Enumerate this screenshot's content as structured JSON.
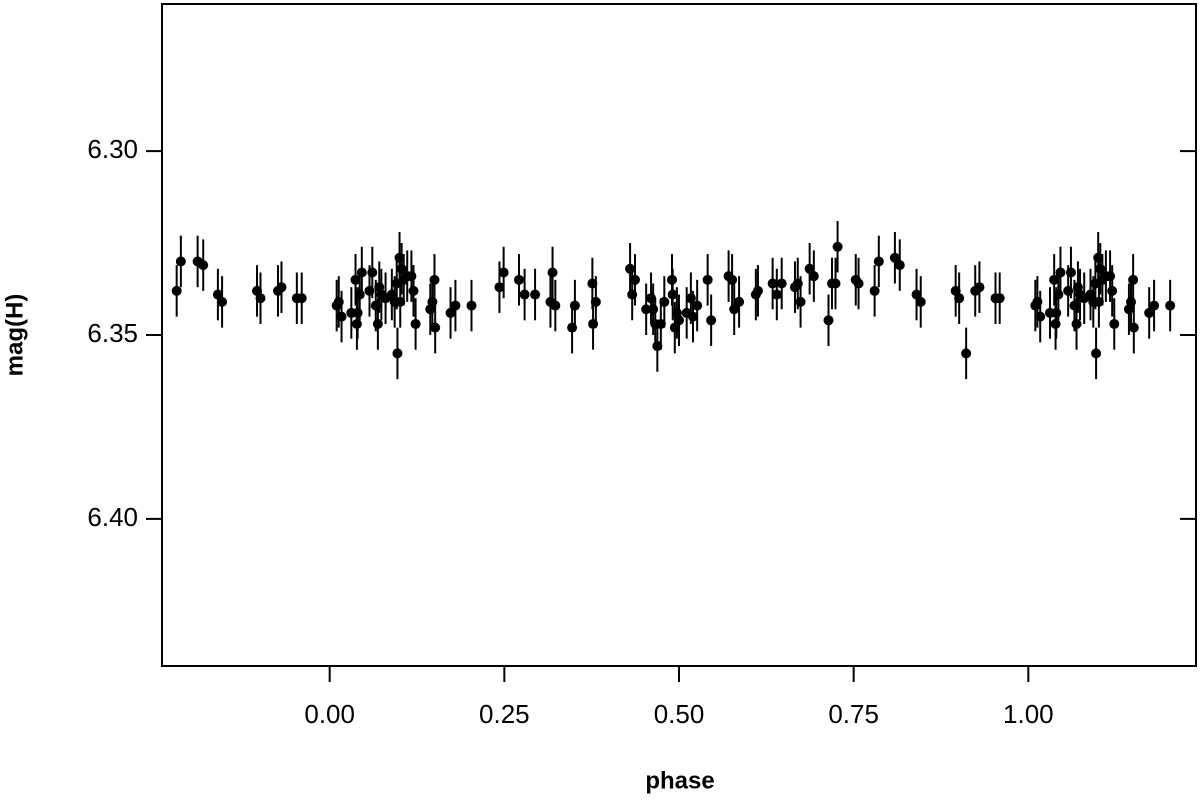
{
  "chart_data": {
    "type": "scatter",
    "x_label": "phase",
    "y_label": "mag(H)",
    "xlim": [
      -0.24,
      1.24
    ],
    "ylim": [
      6.26,
      6.44
    ],
    "y_inverted": true,
    "xticks": [
      {
        "value": 0,
        "label": "0.00"
      },
      0.25,
      {
        "value": 0.5,
        "label": "0.50"
      },
      0.75,
      {
        "value": 1,
        "label": "1.00"
      }
    ],
    "yticks": [
      {
        "value": 6.3,
        "label": "6.30"
      },
      6.35,
      {
        "value": 6.4,
        "label": "6.40"
      }
    ],
    "color": "#000000",
    "error": 0.007,
    "x": [
      -0.219,
      -0.213,
      -0.189,
      -0.181,
      -0.16,
      -0.154,
      -0.104,
      -0.099,
      -0.074,
      -0.069,
      -0.047,
      -0.04,
      0.01,
      0.013,
      0.017,
      0.031,
      0.037,
      0.039,
      0.04,
      0.043,
      0.046,
      0.057,
      0.061,
      0.066,
      0.069,
      0.071,
      0.074,
      0.08,
      0.089,
      0.093,
      0.096,
      0.097,
      0.1,
      0.101,
      0.103,
      0.106,
      0.111,
      0.117,
      0.12,
      0.123,
      0.144,
      0.147,
      0.15,
      0.151,
      0.173,
      0.18,
      0.203,
      0.243,
      0.249,
      0.271,
      0.279,
      0.294,
      0.316,
      0.319,
      0.323,
      0.347,
      0.351,
      0.376,
      0.377,
      0.381,
      0.43,
      0.433,
      0.437,
      0.453,
      0.46,
      0.463,
      0.466,
      0.469,
      0.474,
      0.479,
      0.49,
      0.491,
      0.494,
      0.497,
      0.5,
      0.511,
      0.517,
      0.52,
      0.526,
      0.541,
      0.546,
      0.571,
      0.576,
      0.579,
      0.586,
      0.61,
      0.613,
      0.634,
      0.64,
      0.647,
      0.666,
      0.67,
      0.674,
      0.687,
      0.693,
      0.714,
      0.719,
      0.724,
      0.727,
      0.753,
      0.757,
      0.78,
      0.786,
      0.809,
      0.816,
      0.84,
      0.846,
      0.896,
      0.901,
      0.911,
      0.924,
      0.93,
      0.953,
      0.959,
      1.01,
      1.013,
      1.017,
      1.031,
      1.037,
      1.039,
      1.04,
      1.043,
      1.046,
      1.057,
      1.061,
      1.066,
      1.069,
      1.071,
      1.074,
      1.08,
      1.089,
      1.093,
      1.096,
      1.097,
      1.1,
      1.101,
      1.103,
      1.106,
      1.111,
      1.117,
      1.12,
      1.123,
      1.144,
      1.147,
      1.15,
      1.151,
      1.173,
      1.18,
      1.203
    ],
    "values": [
      6.338,
      6.33,
      6.33,
      6.331,
      6.339,
      6.341,
      6.338,
      6.34,
      6.338,
      6.337,
      6.34,
      6.34,
      6.342,
      6.341,
      6.345,
      6.344,
      6.335,
      6.347,
      6.344,
      6.339,
      6.333,
      6.338,
      6.333,
      6.342,
      6.347,
      6.337,
      6.339,
      6.34,
      6.339,
      6.341,
      6.336,
      6.355,
      6.329,
      6.341,
      6.332,
      6.335,
      6.334,
      6.334,
      6.338,
      6.347,
      6.343,
      6.341,
      6.335,
      6.348,
      6.344,
      6.342,
      6.342,
      6.337,
      6.333,
      6.335,
      6.339,
      6.339,
      6.341,
      6.333,
      6.342,
      6.348,
      6.342,
      6.336,
      6.347,
      6.341,
      6.332,
      6.339,
      6.335,
      6.343,
      6.34,
      6.343,
      6.347,
      6.353,
      6.347,
      6.341,
      6.335,
      6.339,
      6.348,
      6.344,
      6.346,
      6.344,
      6.34,
      6.345,
      6.342,
      6.335,
      6.346,
      6.334,
      6.335,
      6.343,
      6.341,
      6.339,
      6.338,
      6.336,
      6.339,
      6.336,
      6.337,
      6.336,
      6.341,
      6.332,
      6.334,
      6.346,
      6.336,
      6.336,
      6.326,
      6.335,
      6.336,
      6.338,
      6.33,
      6.329,
      6.331,
      6.339,
      6.341,
      6.338,
      6.34,
      6.355,
      6.338,
      6.337,
      6.34,
      6.34,
      6.342,
      6.341,
      6.345,
      6.344,
      6.335,
      6.347,
      6.344,
      6.339,
      6.333,
      6.338,
      6.333,
      6.342,
      6.347,
      6.337,
      6.339,
      6.34,
      6.339,
      6.341,
      6.336,
      6.355,
      6.329,
      6.341,
      6.332,
      6.335,
      6.334,
      6.334,
      6.338,
      6.347,
      6.343,
      6.341,
      6.335,
      6.348,
      6.344,
      6.342,
      6.342
    ]
  }
}
